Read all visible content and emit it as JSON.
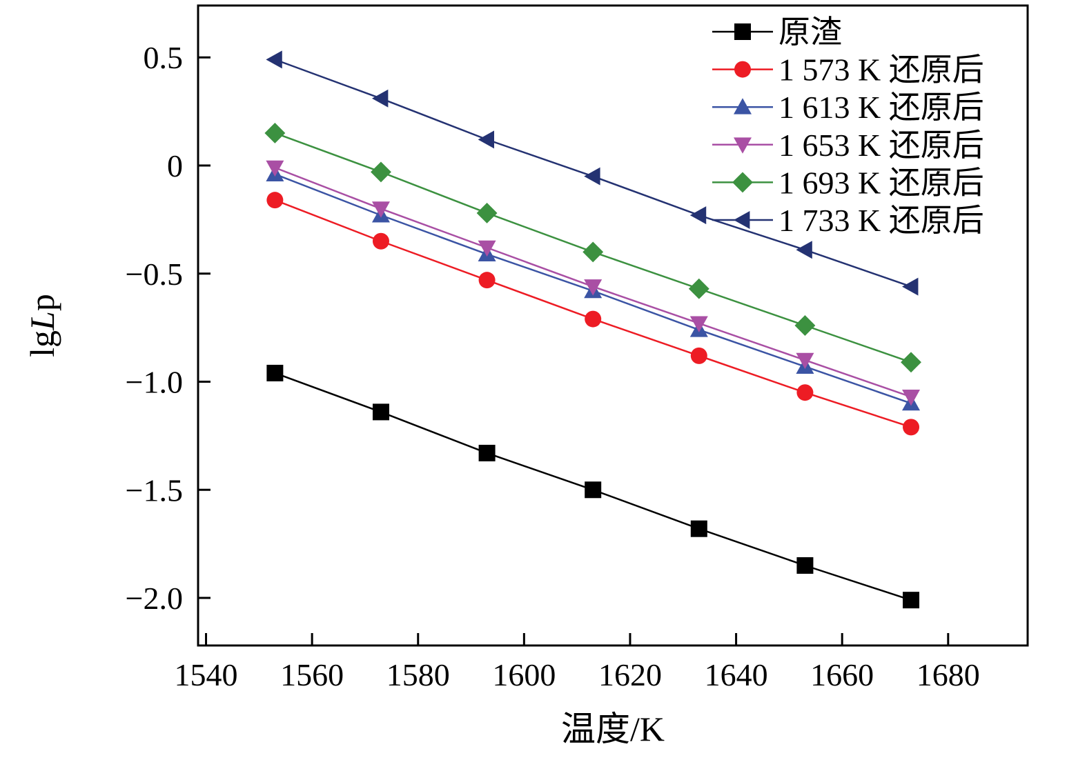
{
  "chart_data": {
    "type": "line",
    "title": "",
    "xlabel": "温度/K",
    "ylabel": "lgLp",
    "ylabel_parts": [
      {
        "text": "lg",
        "italic": false
      },
      {
        "text": "L",
        "italic": true
      },
      {
        "text": "p",
        "italic": false
      }
    ],
    "xlim": [
      1538.5,
      1695
    ],
    "ylim": [
      -2.22,
      0.74
    ],
    "xticks": [
      {
        "value": 1540,
        "label": "1540"
      },
      {
        "value": 1560,
        "label": "1560"
      },
      {
        "value": 1580,
        "label": "1580"
      },
      {
        "value": 1600,
        "label": "1600"
      },
      {
        "value": 1620,
        "label": "1620"
      },
      {
        "value": 1640,
        "label": "1640"
      },
      {
        "value": 1660,
        "label": "1660"
      },
      {
        "value": 1680,
        "label": "1680"
      }
    ],
    "yticks": [
      {
        "value": 0.5,
        "label": "0.5"
      },
      {
        "value": 0,
        "label": "0"
      },
      {
        "value": -0.5,
        "label": "−0.5"
      },
      {
        "value": -1.0,
        "label": "−1.0"
      },
      {
        "value": -1.5,
        "label": "−1.5"
      },
      {
        "value": -2.0,
        "label": "−2.0"
      }
    ],
    "x": [
      1553,
      1573,
      1593,
      1613,
      1633,
      1653,
      1673
    ],
    "series": [
      {
        "name": "原渣",
        "color": "#000000",
        "marker": "square",
        "values": [
          -0.96,
          -1.14,
          -1.33,
          -1.5,
          -1.68,
          -1.85,
          -2.01
        ]
      },
      {
        "name": "1 573 K 还原后",
        "color": "#ed1c24",
        "marker": "circle",
        "values": [
          -0.16,
          -0.35,
          -0.53,
          -0.71,
          -0.88,
          -1.05,
          -1.21
        ]
      },
      {
        "name": "1 613 K 还原后",
        "color": "#3b54a4",
        "marker": "triangle-up",
        "values": [
          -0.04,
          -0.23,
          -0.41,
          -0.58,
          -0.76,
          -0.93,
          -1.1
        ]
      },
      {
        "name": "1 653 K 还原后",
        "color": "#a94fa4",
        "marker": "triangle-down",
        "values": [
          -0.01,
          -0.2,
          -0.38,
          -0.56,
          -0.73,
          -0.9,
          -1.07
        ]
      },
      {
        "name": "1 693 K 还原后",
        "color": "#3c9140",
        "marker": "diamond",
        "values": [
          0.15,
          -0.03,
          -0.22,
          -0.4,
          -0.57,
          -0.74,
          -0.91
        ]
      },
      {
        "name": "1 733 K 还原后",
        "color": "#243272",
        "marker": "triangle-left",
        "values": [
          0.49,
          0.31,
          0.12,
          -0.05,
          -0.23,
          -0.39,
          -0.56
        ]
      }
    ],
    "legend_position": "top-right",
    "grid": false,
    "frame_color": "#000000"
  }
}
